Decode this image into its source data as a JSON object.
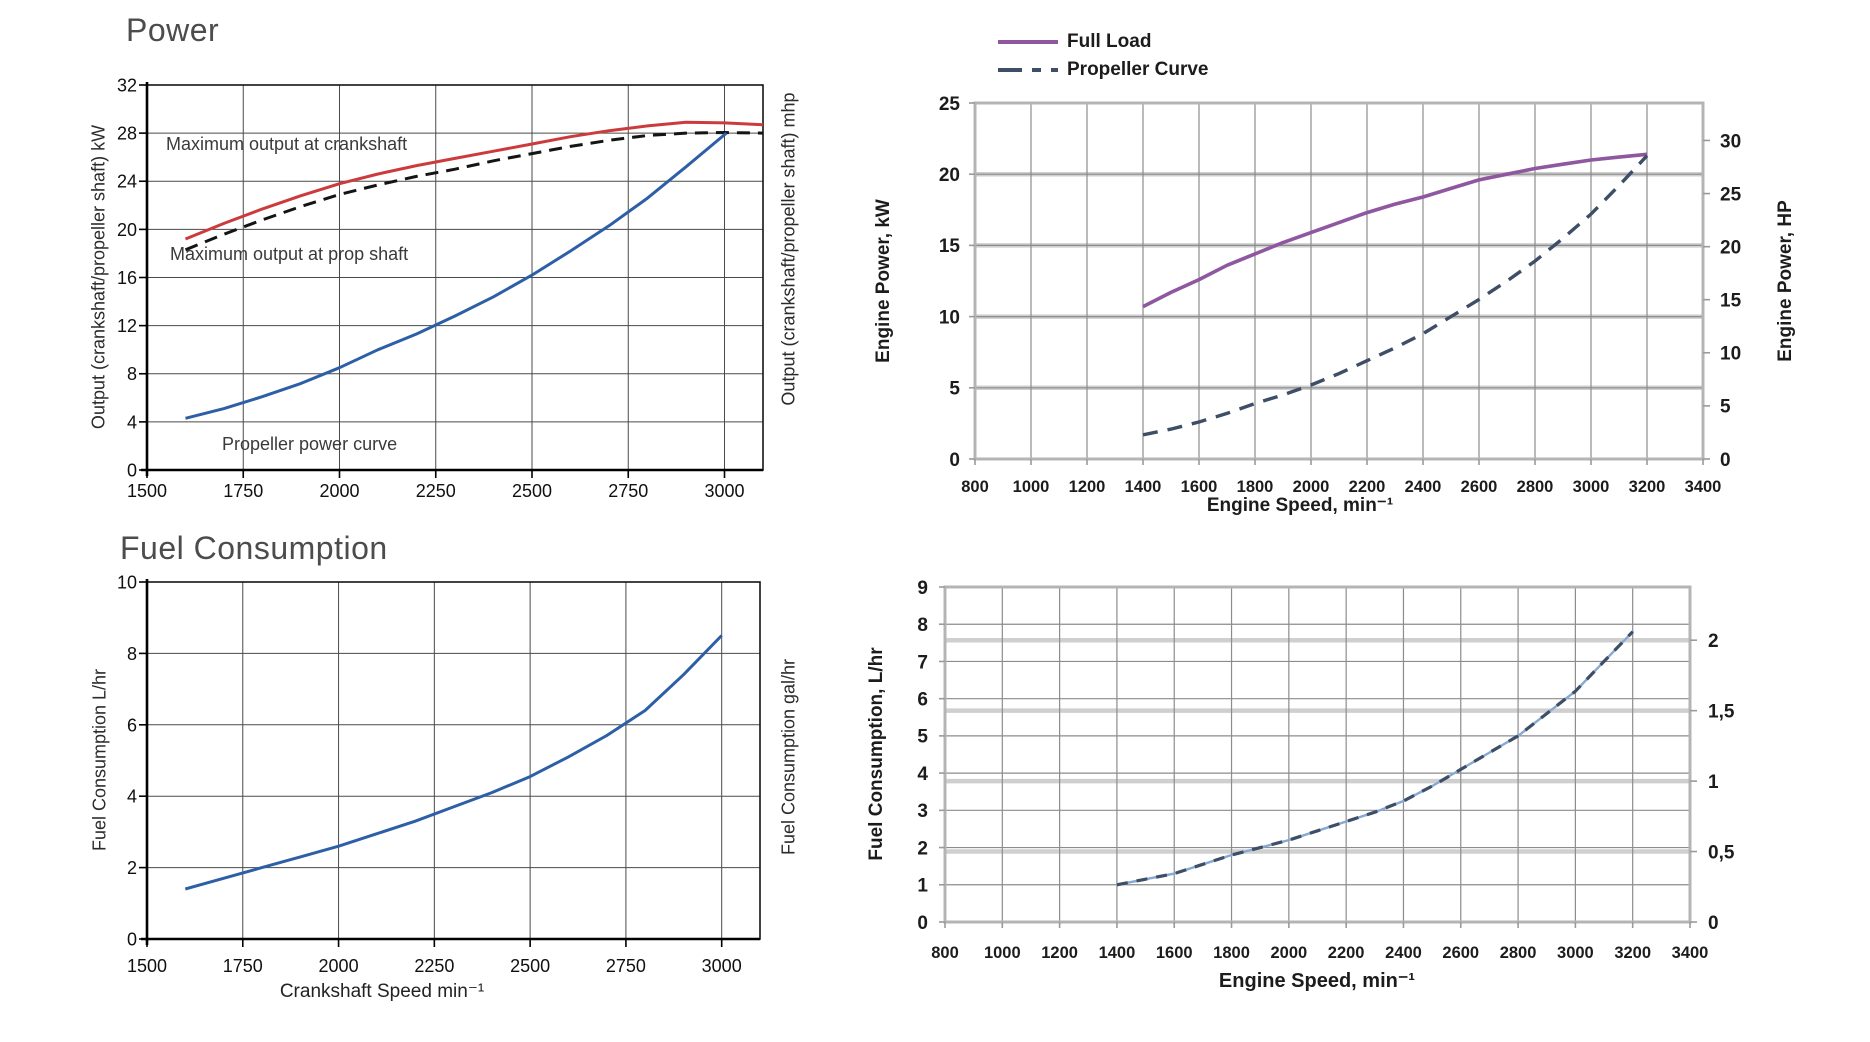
{
  "chart_data": [
    {
      "id": "power-left",
      "type": "line",
      "title": "Power",
      "xlabel": null,
      "ylabel_left": "Output (crankshaft/propeller shaft) kW",
      "ylabel_right": "Output (crankshaft/propeller shaft) mhp",
      "x_range": [
        1500,
        3100
      ],
      "y_range": [
        0,
        32
      ],
      "x_ticks": [
        1500,
        1750,
        2000,
        2250,
        2500,
        2750,
        3000
      ],
      "y_ticks": [
        0,
        4,
        8,
        12,
        16,
        20,
        24,
        28,
        32
      ],
      "x_grid": [
        1750,
        2000,
        2250,
        2500,
        2750,
        3000
      ],
      "y_grid": [
        4,
        8,
        12,
        16,
        20,
        24,
        28
      ],
      "annotations": [
        {
          "text": "Maximum output at crankshaft"
        },
        {
          "text": "Maximum output at prop shaft"
        },
        {
          "text": "Propeller power curve"
        }
      ],
      "series": [
        {
          "name": "Maximum output at crankshaft",
          "color": "#cd3a3c",
          "width": 3,
          "dash": null,
          "points": [
            [
              1600,
              19.2
            ],
            [
              1700,
              20.5
            ],
            [
              1800,
              21.7
            ],
            [
              1900,
              22.8
            ],
            [
              2000,
              23.8
            ],
            [
              2100,
              24.6
            ],
            [
              2200,
              25.3
            ],
            [
              2300,
              25.9
            ],
            [
              2400,
              26.5
            ],
            [
              2500,
              27.1
            ],
            [
              2600,
              27.7
            ],
            [
              2700,
              28.2
            ],
            [
              2800,
              28.6
            ],
            [
              2900,
              28.9
            ],
            [
              3000,
              28.85
            ],
            [
              3100,
              28.7
            ]
          ]
        },
        {
          "name": "Maximum output at prop shaft",
          "color": "#141414",
          "width": 3,
          "dash": [
            13,
            8
          ],
          "points": [
            [
              1600,
              18.3
            ],
            [
              1700,
              19.6
            ],
            [
              1800,
              20.8
            ],
            [
              1900,
              21.9
            ],
            [
              2000,
              22.9
            ],
            [
              2100,
              23.7
            ],
            [
              2200,
              24.4
            ],
            [
              2300,
              25.0
            ],
            [
              2400,
              25.7
            ],
            [
              2500,
              26.3
            ],
            [
              2600,
              26.9
            ],
            [
              2700,
              27.4
            ],
            [
              2800,
              27.8
            ],
            [
              2900,
              28.0
            ],
            [
              3000,
              28.05
            ],
            [
              3100,
              28.0
            ]
          ]
        },
        {
          "name": "Propeller power curve",
          "color": "#2d5fa6",
          "width": 3,
          "dash": null,
          "points": [
            [
              1600,
              4.3
            ],
            [
              1700,
              5.1
            ],
            [
              1800,
              6.1
            ],
            [
              1900,
              7.2
            ],
            [
              2000,
              8.5
            ],
            [
              2100,
              10.0
            ],
            [
              2200,
              11.3
            ],
            [
              2300,
              12.8
            ],
            [
              2400,
              14.4
            ],
            [
              2500,
              16.2
            ],
            [
              2600,
              18.2
            ],
            [
              2700,
              20.3
            ],
            [
              2800,
              22.6
            ],
            [
              2900,
              25.2
            ],
            [
              3005,
              28.0
            ]
          ]
        }
      ]
    },
    {
      "id": "power-right",
      "type": "line",
      "title": null,
      "xlabel": "Engine Speed, min⁻¹",
      "ylabel_left": "Engine Power, kW",
      "ylabel_right": "Engine Power, HP",
      "x_range": [
        800,
        3400
      ],
      "y_range": [
        0,
        25
      ],
      "x_ticks": [
        800,
        1000,
        1200,
        1400,
        1600,
        1800,
        2000,
        2200,
        2400,
        2600,
        2800,
        3000,
        3200,
        3400
      ],
      "y_ticks": [
        0,
        5,
        10,
        15,
        20,
        25
      ],
      "x_grid": [
        1000,
        1200,
        1400,
        1600,
        1800,
        2000,
        2200,
        2400,
        2600,
        2800,
        3000,
        3200
      ],
      "y_grid": [
        5,
        10,
        15,
        20
      ],
      "bands": [
        5,
        10,
        15,
        20
      ],
      "right_ticks": [
        {
          "pos": 0,
          "label": "0"
        },
        {
          "pos": 3.73,
          "label": "5"
        },
        {
          "pos": 7.46,
          "label": "10"
        },
        {
          "pos": 11.19,
          "label": "15"
        },
        {
          "pos": 14.91,
          "label": "20"
        },
        {
          "pos": 18.64,
          "label": "25"
        },
        {
          "pos": 22.37,
          "label": "30"
        }
      ],
      "legend": true,
      "series": [
        {
          "name": "Full Load",
          "color": "#8e57a0",
          "width": 3.6,
          "dash": null,
          "points": [
            [
              1400,
              10.7
            ],
            [
              1500,
              11.7
            ],
            [
              1600,
              12.6
            ],
            [
              1700,
              13.6
            ],
            [
              1800,
              14.4
            ],
            [
              1900,
              15.2
            ],
            [
              2000,
              15.9
            ],
            [
              2100,
              16.6
            ],
            [
              2200,
              17.3
            ],
            [
              2300,
              17.9
            ],
            [
              2400,
              18.4
            ],
            [
              2500,
              19.0
            ],
            [
              2600,
              19.6
            ],
            [
              2700,
              20.0
            ],
            [
              2800,
              20.4
            ],
            [
              2900,
              20.7
            ],
            [
              3000,
              21.0
            ],
            [
              3100,
              21.2
            ],
            [
              3200,
              21.4
            ]
          ]
        },
        {
          "name": "Propeller Curve",
          "color": "#3d4e66",
          "width": 3.4,
          "dash": [
            15,
            10
          ],
          "points": [
            [
              1400,
              1.7
            ],
            [
              1500,
              2.1
            ],
            [
              1600,
              2.6
            ],
            [
              1700,
              3.2
            ],
            [
              1800,
              3.9
            ],
            [
              1900,
              4.5
            ],
            [
              2000,
              5.2
            ],
            [
              2100,
              6.0
            ],
            [
              2200,
              6.9
            ],
            [
              2300,
              7.8
            ],
            [
              2400,
              8.8
            ],
            [
              2500,
              10.0
            ],
            [
              2600,
              11.2
            ],
            [
              2700,
              12.5
            ],
            [
              2800,
              13.9
            ],
            [
              2900,
              15.5
            ],
            [
              3000,
              17.2
            ],
            [
              3100,
              19.2
            ],
            [
              3200,
              21.3
            ]
          ]
        }
      ]
    },
    {
      "id": "fuel-left",
      "type": "line",
      "title": "Fuel Consumption",
      "xlabel": "Crankshaft Speed min⁻¹",
      "ylabel_left": "Fuel Consumption L/hr",
      "ylabel_right": "Fuel Consumption gal/hr",
      "x_range": [
        1500,
        3100
      ],
      "y_range": [
        0,
        10
      ],
      "x_ticks": [
        1500,
        1750,
        2000,
        2250,
        2500,
        2750,
        3000
      ],
      "y_ticks": [
        0,
        2,
        4,
        6,
        8,
        10
      ],
      "x_grid": [
        1750,
        2000,
        2250,
        2500,
        2750,
        3000
      ],
      "y_grid": [
        2,
        4,
        6,
        8
      ],
      "series": [
        {
          "name": "Fuel consumption",
          "color": "#2d5fa6",
          "width": 3,
          "dash": null,
          "points": [
            [
              1600,
              1.4
            ],
            [
              1700,
              1.7
            ],
            [
              1800,
              2.0
            ],
            [
              1900,
              2.3
            ],
            [
              2000,
              2.6
            ],
            [
              2100,
              2.95
            ],
            [
              2200,
              3.3
            ],
            [
              2300,
              3.7
            ],
            [
              2400,
              4.1
            ],
            [
              2500,
              4.55
            ],
            [
              2600,
              5.1
            ],
            [
              2700,
              5.7
            ],
            [
              2800,
              6.4
            ],
            [
              2900,
              7.4
            ],
            [
              3000,
              8.5
            ]
          ]
        }
      ]
    },
    {
      "id": "fuel-right",
      "type": "line",
      "title": null,
      "xlabel": "Engine Speed, min⁻¹",
      "ylabel_left": "Fuel Consumption, L/hr",
      "ylabel_right": null,
      "x_range": [
        800,
        3400
      ],
      "y_range": [
        0,
        9
      ],
      "x_ticks": [
        800,
        1000,
        1200,
        1400,
        1600,
        1800,
        2000,
        2200,
        2400,
        2600,
        2800,
        3000,
        3200,
        3400
      ],
      "y_ticks": [
        0,
        1,
        2,
        3,
        4,
        5,
        6,
        7,
        8,
        9
      ],
      "x_grid": [
        1000,
        1200,
        1400,
        1600,
        1800,
        2000,
        2200,
        2400,
        2600,
        2800,
        3000,
        3200
      ],
      "y_grid": [
        1,
        2,
        3,
        4,
        5,
        6,
        7,
        8
      ],
      "bands": [
        1.893,
        3.785,
        5.678,
        7.571
      ],
      "right_ticks": [
        {
          "pos": 0,
          "label": "0"
        },
        {
          "pos": 1.893,
          "label": "0,5"
        },
        {
          "pos": 3.785,
          "label": "1"
        },
        {
          "pos": 5.678,
          "label": "1,5"
        },
        {
          "pos": 7.571,
          "label": "2"
        }
      ],
      "series": [
        {
          "name": "Fuel consumption",
          "color": "#3d4e66",
          "width": 3.2,
          "dash": [
            11,
            9
          ],
          "underlay": "#85a8d4",
          "points": [
            [
              1400,
              1.0
            ],
            [
              1500,
              1.15
            ],
            [
              1600,
              1.3
            ],
            [
              1700,
              1.55
            ],
            [
              1800,
              1.8
            ],
            [
              1900,
              2.0
            ],
            [
              2000,
              2.2
            ],
            [
              2100,
              2.45
            ],
            [
              2200,
              2.7
            ],
            [
              2300,
              2.95
            ],
            [
              2400,
              3.25
            ],
            [
              2500,
              3.65
            ],
            [
              2600,
              4.1
            ],
            [
              2700,
              4.55
            ],
            [
              2800,
              5.0
            ],
            [
              2900,
              5.6
            ],
            [
              3000,
              6.2
            ],
            [
              3100,
              7.0
            ],
            [
              3200,
              7.8
            ]
          ]
        }
      ]
    }
  ]
}
